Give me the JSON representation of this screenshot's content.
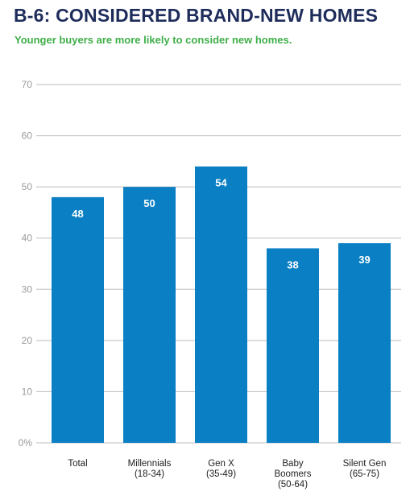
{
  "title": "B-6: CONSIDERED BRAND-NEW HOMES",
  "subtitle": "Younger buyers are more likely to consider new homes.",
  "colors": {
    "bar": "#0a7fc4",
    "grid": "#bdbdbd",
    "title": "#1d2c5a",
    "subtitle": "#3fae49"
  },
  "chart_data": {
    "type": "bar",
    "categories": [
      [
        "Total"
      ],
      [
        "Millennials",
        "(18-34)"
      ],
      [
        "Gen X",
        "(35-49)"
      ],
      [
        "Baby",
        "Boomers",
        "(50-64)"
      ],
      [
        "Silent Gen",
        "(65-75)"
      ]
    ],
    "values": [
      48,
      50,
      54,
      38,
      39
    ],
    "data_labels": [
      "48",
      "50",
      "54",
      "38",
      "39"
    ],
    "yticks": [
      "0%",
      "10",
      "20",
      "30",
      "40",
      "50",
      "60",
      "70"
    ],
    "ylim": [
      0,
      70
    ],
    "grid": true,
    "legend": "none"
  }
}
